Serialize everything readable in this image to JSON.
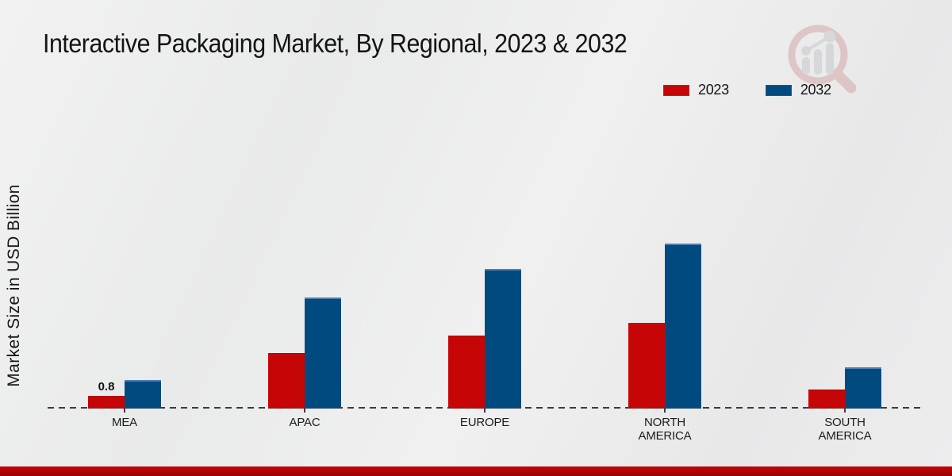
{
  "title": "Interactive Packaging Market, By Regional, 2023 & 2032",
  "y_axis_label": "Market Size in USD Billion",
  "watermark_icon": "magnifier-bar-chart-logo",
  "footer_accent_color": "#b30303",
  "chart_data": {
    "type": "bar",
    "title": "Interactive Packaging Market, By Regional, 2023 & 2032",
    "ylabel": "Market Size in USD Billion",
    "unit": "USD Billion",
    "categories": [
      "MEA",
      "APAC",
      "EUROPE",
      "NORTH AMERICA",
      "SOUTH AMERICA"
    ],
    "series": [
      {
        "name": "2023",
        "color": "#c60606",
        "values": [
          0.8,
          3.5,
          4.6,
          5.4,
          1.2
        ]
      },
      {
        "name": "2032",
        "color": "#004a80",
        "values": [
          1.8,
          7.0,
          8.8,
          10.4,
          2.6
        ]
      }
    ],
    "bar_labels": [
      {
        "category": "MEA",
        "series": "2023",
        "text": "0.8"
      }
    ],
    "baseline_style": "dashed",
    "grid": false,
    "legend_position": "top-right"
  }
}
